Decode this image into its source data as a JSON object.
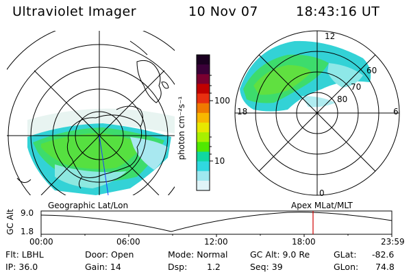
{
  "header": {
    "title": "Ultraviolet Imager",
    "date": "10 Nov 07",
    "time": "18:43:16 UT"
  },
  "left_panel": {
    "label": "Geographic Lat/Lon"
  },
  "right_panel": {
    "label": "Apex MLat/MLT",
    "mlt_labels": [
      "12",
      "18",
      "6",
      "0"
    ],
    "lat_labels": [
      "60",
      "70",
      "80"
    ]
  },
  "colorbar": {
    "label": "photon cm⁻²s⁻¹",
    "ticks": [
      "100",
      "10"
    ],
    "colors": [
      "#1a0020",
      "#3a0038",
      "#7a0030",
      "#c00000",
      "#e83010",
      "#f07a00",
      "#f8b800",
      "#e8e800",
      "#a8f000",
      "#50e800",
      "#10d8a0",
      "#30d8e0",
      "#a0e8f0",
      "#e0f4f8"
    ]
  },
  "timeline": {
    "y_axis_label": "GC Alt",
    "y_ticks": [
      "9.0",
      "1.8"
    ],
    "x_ticks": [
      "00:00",
      "06:00",
      "12:00",
      "18:00",
      "23:59"
    ]
  },
  "footer": {
    "row1": {
      "filter": "Flt: LBHL",
      "door": "Door: Open",
      "mode": "Mode: Normal",
      "gc_alt": "GC Alt: 9.0 Re",
      "glat_label": "GLat:",
      "glat_value": "-82.6"
    },
    "row2": {
      "ip": "IP: 36.0",
      "gain": "Gain: 14",
      "dsp_label": "Dsp:",
      "dsp_value": "1.2",
      "seq": "Seq: 39",
      "glon_label": "GLon:",
      "glon_value": "74.8"
    }
  }
}
